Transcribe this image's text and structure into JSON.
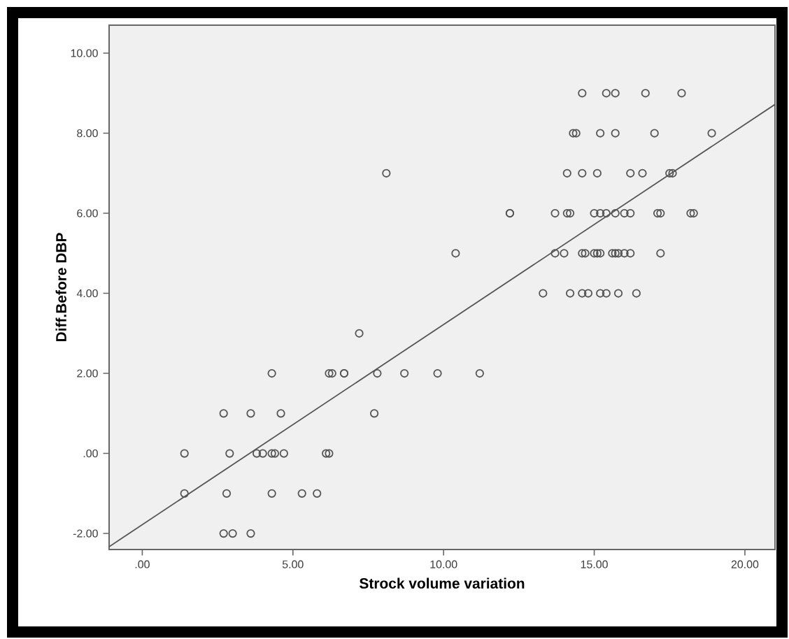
{
  "chart_data": {
    "type": "scatter",
    "xlabel": "Strock volume variation",
    "ylabel": "Diff.Before DBP",
    "xlim": [
      -1.1,
      21
    ],
    "ylim": [
      -2.4,
      10.7
    ],
    "xticks": [
      {
        "value": 0,
        "label": ".00"
      },
      {
        "value": 5,
        "label": "5.00"
      },
      {
        "value": 10,
        "label": "10.00"
      },
      {
        "value": 15,
        "label": "15.00"
      },
      {
        "value": 20,
        "label": "20.00"
      }
    ],
    "yticks": [
      {
        "value": -2,
        "label": "-2.00"
      },
      {
        "value": 0,
        "label": ".00"
      },
      {
        "value": 2,
        "label": "2.00"
      },
      {
        "value": 4,
        "label": "4.00"
      },
      {
        "value": 6,
        "label": "6.00"
      },
      {
        "value": 8,
        "label": "8.00"
      },
      {
        "value": 10,
        "label": "10.00"
      }
    ],
    "grid": false,
    "series": [
      {
        "marker": "circle",
        "color": "#555555",
        "x": [
          14.6,
          15.4,
          15.7,
          16.7,
          17.9,
          14.3,
          14.4,
          15.2,
          15.7,
          17.0,
          18.9,
          8.1,
          14.1,
          14.6,
          15.1,
          16.2,
          16.6,
          17.5,
          17.6,
          12.2,
          12.2,
          13.7,
          14.1,
          14.2,
          15.0,
          15.2,
          15.4,
          15.7,
          16.0,
          16.2,
          17.1,
          17.2,
          18.2,
          18.3,
          10.4,
          13.7,
          14.0,
          14.6,
          14.7,
          15.0,
          15.1,
          15.2,
          15.6,
          15.7,
          15.8,
          16.0,
          16.2,
          17.2,
          13.3,
          14.2,
          14.6,
          14.8,
          15.2,
          15.4,
          15.8,
          16.4,
          7.2,
          4.3,
          6.2,
          6.3,
          6.7,
          6.7,
          7.8,
          8.7,
          9.8,
          11.2,
          2.7,
          3.6,
          4.6,
          7.7,
          1.4,
          2.9,
          3.8,
          4.0,
          4.3,
          4.4,
          4.7,
          6.1,
          6.2,
          1.4,
          2.8,
          4.3,
          5.3,
          5.8,
          2.7,
          3.0,
          3.6
        ],
        "values": [
          9,
          9,
          9,
          9,
          9,
          8,
          8,
          8,
          8,
          8,
          8,
          7,
          7,
          7,
          7,
          7,
          7,
          7,
          7,
          6,
          6,
          6,
          6,
          6,
          6,
          6,
          6,
          6,
          6,
          6,
          6,
          6,
          6,
          6,
          5,
          5,
          5,
          5,
          5,
          5,
          5,
          5,
          5,
          5,
          5,
          5,
          5,
          5,
          4,
          4,
          4,
          4,
          4,
          4,
          4,
          4,
          3,
          2,
          2,
          2,
          2,
          2,
          2,
          2,
          2,
          2,
          1,
          1,
          1,
          1,
          0,
          0,
          0,
          0,
          0,
          0,
          0,
          0,
          0,
          -1,
          -1,
          -1,
          -1,
          -1,
          -2,
          -2,
          -2
        ]
      },
      {
        "type": "line",
        "color": "#555555",
        "x": [
          -1.1,
          21
        ],
        "values": [
          -2.33,
          8.72
        ]
      }
    ]
  }
}
